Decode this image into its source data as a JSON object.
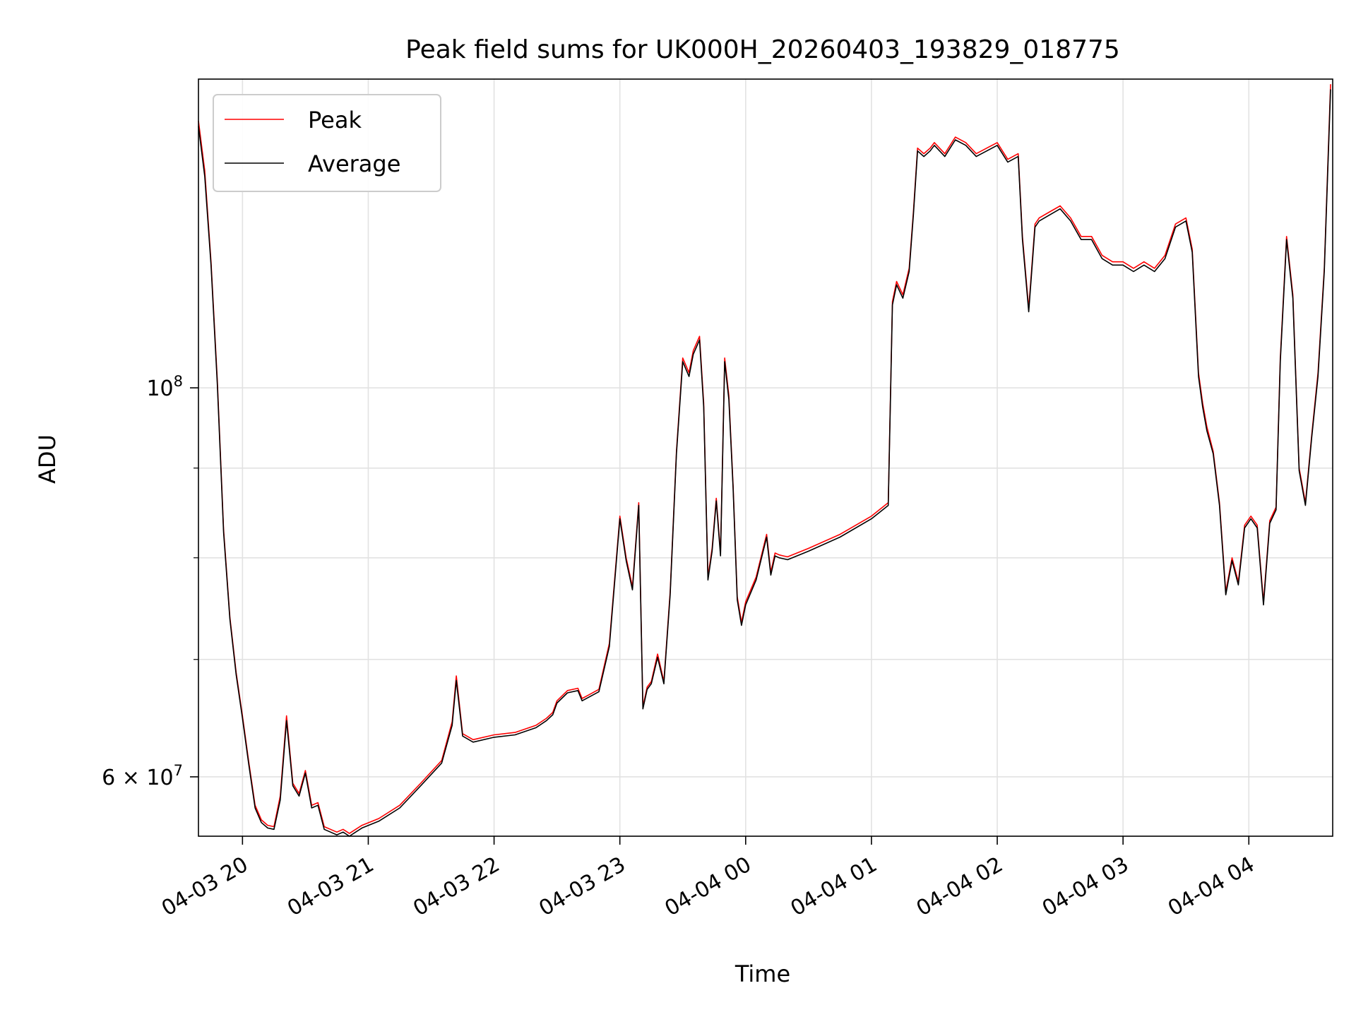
{
  "chart_data": {
    "type": "line",
    "title": "Peak field sums for UK000H_20260403_193829_018775",
    "xlabel": "Time",
    "ylabel": "ADU",
    "x_unit": "datetime",
    "yscale": "log",
    "xlim": [
      "2026-04-03 19:39",
      "2026-04-04 04:40"
    ],
    "ylim": [
      55500000,
      150000000
    ],
    "grid": true,
    "legend_position": "top-left",
    "x_ticks": [
      {
        "value": "2026-04-03 20:00",
        "label": "04-03 20"
      },
      {
        "value": "2026-04-03 21:00",
        "label": "04-03 21"
      },
      {
        "value": "2026-04-03 22:00",
        "label": "04-03 22"
      },
      {
        "value": "2026-04-03 23:00",
        "label": "04-03 23"
      },
      {
        "value": "2026-04-04 00:00",
        "label": "04-04 00"
      },
      {
        "value": "2026-04-04 01:00",
        "label": "04-04 01"
      },
      {
        "value": "2026-04-04 02:00",
        "label": "04-04 02"
      },
      {
        "value": "2026-04-04 03:00",
        "label": "04-04 03"
      },
      {
        "value": "2026-04-04 04:00",
        "label": "04-04 04"
      }
    ],
    "y_major_ticks": [
      {
        "value": 100000000,
        "base": "10",
        "exp": "8"
      },
      {
        "value": 60000000,
        "base": "6 × 10",
        "exp": "7"
      }
    ],
    "y_minor_ticks": [
      70000000,
      80000000,
      90000000
    ],
    "series": [
      {
        "name": "Peak",
        "color": "#ff0000",
        "x": [
          "2026-04-03 19:39",
          "2026-04-03 19:42",
          "2026-04-03 19:45",
          "2026-04-03 19:48",
          "2026-04-03 19:51",
          "2026-04-03 19:54",
          "2026-04-03 19:57",
          "2026-04-03 20:00",
          "2026-04-03 20:03",
          "2026-04-03 20:06",
          "2026-04-03 20:09",
          "2026-04-03 20:12",
          "2026-04-03 20:15",
          "2026-04-03 20:18",
          "2026-04-03 20:21",
          "2026-04-03 20:24",
          "2026-04-03 20:27",
          "2026-04-03 20:30",
          "2026-04-03 20:33",
          "2026-04-03 20:36",
          "2026-04-03 20:39",
          "2026-04-03 20:42",
          "2026-04-03 20:45",
          "2026-04-03 20:48",
          "2026-04-03 20:51",
          "2026-04-03 20:54",
          "2026-04-03 20:57",
          "2026-04-03 21:05",
          "2026-04-03 21:15",
          "2026-04-03 21:25",
          "2026-04-03 21:35",
          "2026-04-03 21:40",
          "2026-04-03 21:42",
          "2026-04-03 21:45",
          "2026-04-03 21:50",
          "2026-04-03 22:00",
          "2026-04-03 22:10",
          "2026-04-03 22:20",
          "2026-04-03 22:25",
          "2026-04-03 22:28",
          "2026-04-03 22:30",
          "2026-04-03 22:35",
          "2026-04-03 22:40",
          "2026-04-03 22:42",
          "2026-04-03 22:45",
          "2026-04-03 22:50",
          "2026-04-03 22:55",
          "2026-04-03 23:00",
          "2026-04-03 23:03",
          "2026-04-03 23:06",
          "2026-04-03 23:09",
          "2026-04-03 23:11",
          "2026-04-03 23:13",
          "2026-04-03 23:15",
          "2026-04-03 23:18",
          "2026-04-03 23:21",
          "2026-04-03 23:24",
          "2026-04-03 23:27",
          "2026-04-03 23:30",
          "2026-04-03 23:33",
          "2026-04-03 23:35",
          "2026-04-03 23:38",
          "2026-04-03 23:40",
          "2026-04-03 23:42",
          "2026-04-03 23:44",
          "2026-04-03 23:46",
          "2026-04-03 23:48",
          "2026-04-03 23:50",
          "2026-04-03 23:52",
          "2026-04-03 23:54",
          "2026-04-03 23:56",
          "2026-04-03 23:58",
          "2026-04-04 00:00",
          "2026-04-04 00:05",
          "2026-04-04 00:10",
          "2026-04-04 00:12",
          "2026-04-04 00:14",
          "2026-04-04 00:16",
          "2026-04-04 00:18",
          "2026-04-04 00:20",
          "2026-04-04 00:30",
          "2026-04-04 00:45",
          "2026-04-04 01:00",
          "2026-04-04 01:08",
          "2026-04-04 01:10",
          "2026-04-04 01:12",
          "2026-04-04 01:15",
          "2026-04-04 01:18",
          "2026-04-04 01:20",
          "2026-04-04 01:22",
          "2026-04-04 01:25",
          "2026-04-04 01:28",
          "2026-04-04 01:30",
          "2026-04-04 01:35",
          "2026-04-04 01:40",
          "2026-04-04 01:45",
          "2026-04-04 01:50",
          "2026-04-04 01:55",
          "2026-04-04 02:00",
          "2026-04-04 02:05",
          "2026-04-04 02:10",
          "2026-04-04 02:12",
          "2026-04-04 02:15",
          "2026-04-04 02:18",
          "2026-04-04 02:20",
          "2026-04-04 02:25",
          "2026-04-04 02:30",
          "2026-04-04 02:35",
          "2026-04-04 02:40",
          "2026-04-04 02:45",
          "2026-04-04 02:50",
          "2026-04-04 02:55",
          "2026-04-04 03:00",
          "2026-04-04 03:05",
          "2026-04-04 03:10",
          "2026-04-04 03:15",
          "2026-04-04 03:20",
          "2026-04-04 03:25",
          "2026-04-04 03:30",
          "2026-04-04 03:33",
          "2026-04-04 03:36",
          "2026-04-04 03:38",
          "2026-04-04 03:40",
          "2026-04-04 03:43",
          "2026-04-04 03:46",
          "2026-04-04 03:49",
          "2026-04-04 03:52",
          "2026-04-04 03:55",
          "2026-04-04 03:58",
          "2026-04-04 04:01",
          "2026-04-04 04:04",
          "2026-04-04 04:07",
          "2026-04-04 04:10",
          "2026-04-04 04:13",
          "2026-04-04 04:15",
          "2026-04-04 04:18",
          "2026-04-04 04:21",
          "2026-04-04 04:24",
          "2026-04-04 04:27",
          "2026-04-04 04:30",
          "2026-04-04 04:33",
          "2026-04-04 04:36",
          "2026-04-04 04:39"
        ],
        "values": [
          142000000,
          133000000,
          118000000,
          101000000,
          83000000,
          74000000,
          68800000,
          65000000,
          61200000,
          57800000,
          56700000,
          56300000,
          56200000,
          58500000,
          65000000,
          59500000,
          58700000,
          60500000,
          57800000,
          58000000,
          56200000,
          56000000,
          55800000,
          56000000,
          55700000,
          56000000,
          56300000,
          56800000,
          57800000,
          59500000,
          61300000,
          64500000,
          68500000,
          63500000,
          63000000,
          63400000,
          63600000,
          64200000,
          64800000,
          65300000,
          66300000,
          67200000,
          67400000,
          66500000,
          66800000,
          67300000,
          71500000,
          84500000,
          80000000,
          77000000,
          86000000,
          65800000,
          67500000,
          68000000,
          70500000,
          68000000,
          76500000,
          92000000,
          104000000,
          102000000,
          105000000,
          107000000,
          98000000,
          78000000,
          81000000,
          86500000,
          80500000,
          104000000,
          99000000,
          88000000,
          76000000,
          73500000,
          75500000,
          78000000,
          82500000,
          78500000,
          80500000,
          80300000,
          80200000,
          80100000,
          81000000,
          82500000,
          84500000,
          86000000,
          112000000,
          115000000,
          113000000,
          117000000,
          126000000,
          137000000,
          136000000,
          137000000,
          138000000,
          136000000,
          139000000,
          138000000,
          136000000,
          137000000,
          138000000,
          135000000,
          136000000,
          122000000,
          111000000,
          124000000,
          125000000,
          126000000,
          127000000,
          125000000,
          122000000,
          122000000,
          119000000,
          118000000,
          118000000,
          117000000,
          118000000,
          117000000,
          119000000,
          124000000,
          125000000,
          120000000,
          102000000,
          98000000,
          95000000,
          92000000,
          86000000,
          76500000,
          80000000,
          77500000,
          83500000,
          84500000,
          83500000,
          75500000,
          84000000,
          85500000,
          104000000,
          122000000,
          113000000,
          90000000,
          86000000,
          94000000,
          102000000,
          117000000,
          149000000
        ]
      },
      {
        "name": "Average",
        "color": "#000000",
        "x": [
          "2026-04-03 19:39",
          "2026-04-03 19:42",
          "2026-04-03 19:45",
          "2026-04-03 19:48",
          "2026-04-03 19:51",
          "2026-04-03 19:54",
          "2026-04-03 19:57",
          "2026-04-03 20:00",
          "2026-04-03 20:03",
          "2026-04-03 20:06",
          "2026-04-03 20:09",
          "2026-04-03 20:12",
          "2026-04-03 20:15",
          "2026-04-03 20:18",
          "2026-04-03 20:21",
          "2026-04-03 20:24",
          "2026-04-03 20:27",
          "2026-04-03 20:30",
          "2026-04-03 20:33",
          "2026-04-03 20:36",
          "2026-04-03 20:39",
          "2026-04-03 20:42",
          "2026-04-03 20:45",
          "2026-04-03 20:48",
          "2026-04-03 20:51",
          "2026-04-03 20:54",
          "2026-04-03 20:57",
          "2026-04-03 21:05",
          "2026-04-03 21:15",
          "2026-04-03 21:25",
          "2026-04-03 21:35",
          "2026-04-03 21:40",
          "2026-04-03 21:42",
          "2026-04-03 21:45",
          "2026-04-03 21:50",
          "2026-04-03 22:00",
          "2026-04-03 22:10",
          "2026-04-03 22:20",
          "2026-04-03 22:25",
          "2026-04-03 22:28",
          "2026-04-03 22:30",
          "2026-04-03 22:35",
          "2026-04-03 22:40",
          "2026-04-03 22:42",
          "2026-04-03 22:45",
          "2026-04-03 22:50",
          "2026-04-03 22:55",
          "2026-04-03 23:00",
          "2026-04-03 23:03",
          "2026-04-03 23:06",
          "2026-04-03 23:09",
          "2026-04-03 23:11",
          "2026-04-03 23:13",
          "2026-04-03 23:15",
          "2026-04-03 23:18",
          "2026-04-03 23:21",
          "2026-04-03 23:24",
          "2026-04-03 23:27",
          "2026-04-03 23:30",
          "2026-04-03 23:33",
          "2026-04-03 23:35",
          "2026-04-03 23:38",
          "2026-04-03 23:40",
          "2026-04-03 23:42",
          "2026-04-03 23:44",
          "2026-04-03 23:46",
          "2026-04-03 23:48",
          "2026-04-03 23:50",
          "2026-04-03 23:52",
          "2026-04-03 23:54",
          "2026-04-03 23:56",
          "2026-04-03 23:58",
          "2026-04-04 00:00",
          "2026-04-04 00:05",
          "2026-04-04 00:10",
          "2026-04-04 00:12",
          "2026-04-04 00:14",
          "2026-04-04 00:16",
          "2026-04-04 00:18",
          "2026-04-04 00:20",
          "2026-04-04 00:30",
          "2026-04-04 00:45",
          "2026-04-04 01:00",
          "2026-04-04 01:08",
          "2026-04-04 01:10",
          "2026-04-04 01:12",
          "2026-04-04 01:15",
          "2026-04-04 01:18",
          "2026-04-04 01:20",
          "2026-04-04 01:22",
          "2026-04-04 01:25",
          "2026-04-04 01:28",
          "2026-04-04 01:30",
          "2026-04-04 01:35",
          "2026-04-04 01:40",
          "2026-04-04 01:45",
          "2026-04-04 01:50",
          "2026-04-04 01:55",
          "2026-04-04 02:00",
          "2026-04-04 02:05",
          "2026-04-04 02:10",
          "2026-04-04 02:12",
          "2026-04-04 02:15",
          "2026-04-04 02:18",
          "2026-04-04 02:20",
          "2026-04-04 02:25",
          "2026-04-04 02:30",
          "2026-04-04 02:35",
          "2026-04-04 02:40",
          "2026-04-04 02:45",
          "2026-04-04 02:50",
          "2026-04-04 02:55",
          "2026-04-04 03:00",
          "2026-04-04 03:05",
          "2026-04-04 03:10",
          "2026-04-04 03:15",
          "2026-04-04 03:20",
          "2026-04-04 03:25",
          "2026-04-04 03:30",
          "2026-04-04 03:33",
          "2026-04-04 03:36",
          "2026-04-04 03:38",
          "2026-04-04 03:40",
          "2026-04-04 03:43",
          "2026-04-04 03:46",
          "2026-04-04 03:49",
          "2026-04-04 03:52",
          "2026-04-04 03:55",
          "2026-04-04 03:58",
          "2026-04-04 04:01",
          "2026-04-04 04:04",
          "2026-04-04 04:07",
          "2026-04-04 04:10",
          "2026-04-04 04:13",
          "2026-04-04 04:15",
          "2026-04-04 04:18",
          "2026-04-04 04:21",
          "2026-04-04 04:24",
          "2026-04-04 04:27",
          "2026-04-04 04:30",
          "2026-04-04 04:33",
          "2026-04-04 04:36",
          "2026-04-04 04:39"
        ],
        "values": [
          141000000,
          132000000,
          117500000,
          100500000,
          82700000,
          73800000,
          68600000,
          64800000,
          61000000,
          57600000,
          56500000,
          56100000,
          56000000,
          58200000,
          64600000,
          59300000,
          58500000,
          60300000,
          57600000,
          57800000,
          56000000,
          55800000,
          55600000,
          55800000,
          55500000,
          55800000,
          56100000,
          56600000,
          57600000,
          59300000,
          61100000,
          64200000,
          68100000,
          63300000,
          62800000,
          63200000,
          63400000,
          64000000,
          64600000,
          65100000,
          66100000,
          67000000,
          67200000,
          66300000,
          66600000,
          67100000,
          71200000,
          84200000,
          79700000,
          76700000,
          85700000,
          65600000,
          67300000,
          67800000,
          70200000,
          67800000,
          76200000,
          91700000,
          103500000,
          101500000,
          104500000,
          106500000,
          97500000,
          77700000,
          80700000,
          86200000,
          80200000,
          103500000,
          98500000,
          87700000,
          75700000,
          73200000,
          75200000,
          77700000,
          82200000,
          78200000,
          80200000,
          80000000,
          79900000,
          79800000,
          80700000,
          82200000,
          84200000,
          85700000,
          111500000,
          114500000,
          112500000,
          116500000,
          125500000,
          136500000,
          135500000,
          136500000,
          137500000,
          135500000,
          138500000,
          137500000,
          135500000,
          136500000,
          137500000,
          134500000,
          135500000,
          121500000,
          110500000,
          123500000,
          124500000,
          125500000,
          126500000,
          124500000,
          121500000,
          121500000,
          118500000,
          117500000,
          117500000,
          116500000,
          117500000,
          116500000,
          118500000,
          123500000,
          124500000,
          119500000,
          101500000,
          97500000,
          94500000,
          91700000,
          85700000,
          76200000,
          79700000,
          77200000,
          83200000,
          84200000,
          83200000,
          75200000,
          83700000,
          85200000,
          103500000,
          121500000,
          112500000,
          89700000,
          85700000,
          93700000,
          101500000,
          116500000,
          148000000
        ]
      }
    ]
  }
}
